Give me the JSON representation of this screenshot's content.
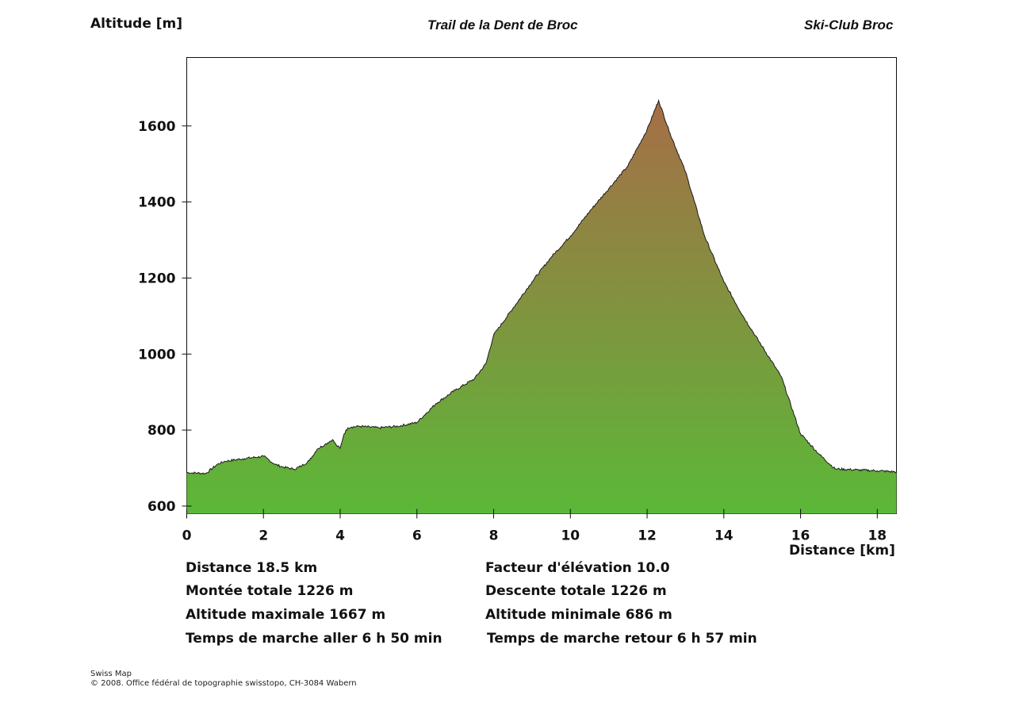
{
  "header": {
    "ylabel": "Altitude [m]",
    "title": "Trail de la Dent de Broc",
    "organizer": "Ski-Club Broc"
  },
  "chart_data": {
    "type": "area",
    "title": "Trail de la Dent de Broc",
    "xlabel": "Distance [km]",
    "ylabel": "Altitude [m]",
    "xlim": [
      0,
      18.5
    ],
    "ylim": [
      580,
      1780
    ],
    "xticks": [
      0,
      2,
      4,
      6,
      8,
      10,
      12,
      14,
      16,
      18
    ],
    "yticks": [
      600,
      800,
      1000,
      1200,
      1400,
      1600
    ],
    "grid": false,
    "fill_gradient": {
      "low": "#5bb838",
      "high": "#a66e46"
    },
    "line_color": "#1a1a1a",
    "x": [
      0,
      0.5,
      0.8,
      1.0,
      1.5,
      2.0,
      2.3,
      2.5,
      2.8,
      3.0,
      3.2,
      3.4,
      3.6,
      3.8,
      3.9,
      4.0,
      4.1,
      4.2,
      4.3,
      4.5,
      5.0,
      5.5,
      6.0,
      6.5,
      7.0,
      7.5,
      7.8,
      8.0,
      8.5,
      9.0,
      9.5,
      10.0,
      10.5,
      11.0,
      11.5,
      12.0,
      12.3,
      12.6,
      13.0,
      13.5,
      14.0,
      14.5,
      15.0,
      15.5,
      16.0,
      16.5,
      16.9,
      17.5,
      18.0,
      18.5
    ],
    "y": [
      688,
      686,
      710,
      718,
      725,
      731,
      710,
      703,
      697,
      706,
      720,
      750,
      762,
      775,
      760,
      752,
      790,
      806,
      808,
      810,
      806,
      810,
      820,
      870,
      905,
      935,
      975,
      1050,
      1120,
      1190,
      1255,
      1310,
      1375,
      1435,
      1495,
      1590,
      1667,
      1580,
      1480,
      1310,
      1190,
      1100,
      1020,
      940,
      790,
      735,
      698,
      695,
      693,
      690
    ]
  },
  "stats": {
    "distance": "Distance 18.5 km",
    "elevation_factor": "Facteur d'élévation 10.0",
    "ascent": "Montée totale  1226 m",
    "descent": "Descente totale  1226 m",
    "alt_max": "Altitude maximale  1667 m",
    "alt_min": "Altitude minimale  686 m",
    "time_out": "Temps de marche aller  6 h 50 min",
    "time_back": "Temps de marche retour  6 h 57 min"
  },
  "credit": {
    "line1": "Swiss Map",
    "line2": "© 2008. Office fédéral de topographie swisstopo, CH-3084 Wabern"
  }
}
